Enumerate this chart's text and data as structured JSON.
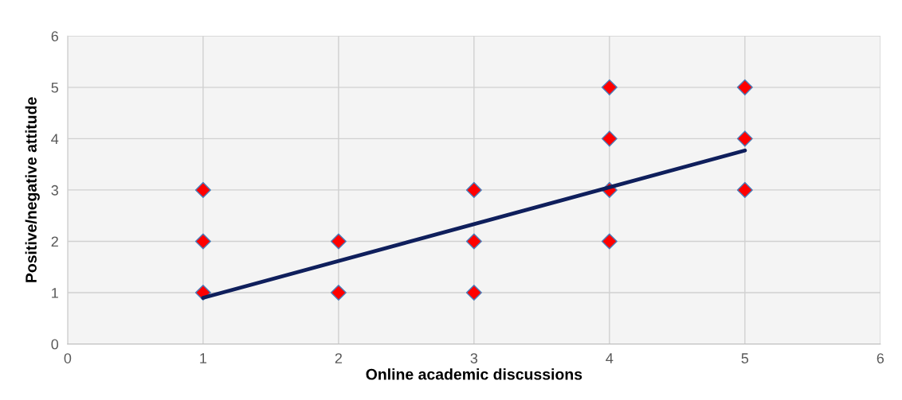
{
  "chart_data": {
    "type": "scatter",
    "xlabel": "Online academic discussions",
    "ylabel": "Positive/negative attitude",
    "xlim": [
      0,
      6
    ],
    "ylim": [
      0,
      6
    ],
    "xticks": [
      0,
      1,
      2,
      3,
      4,
      5,
      6
    ],
    "yticks": [
      0,
      1,
      2,
      3,
      4,
      5,
      6
    ],
    "grid": true,
    "series": [
      {
        "marker": "diamond",
        "color": "#ff0000",
        "x": [
          1,
          1,
          1,
          2,
          2,
          3,
          3,
          3,
          4,
          4,
          4,
          4,
          5,
          5,
          5
        ],
        "values": [
          1,
          2,
          3,
          1,
          2,
          1,
          2,
          3,
          2,
          3,
          4,
          5,
          3,
          4,
          5
        ]
      },
      {
        "type": "line",
        "color": "#0f1f5c",
        "x": [
          1,
          5
        ],
        "values": [
          0.9,
          3.77
        ]
      }
    ]
  }
}
